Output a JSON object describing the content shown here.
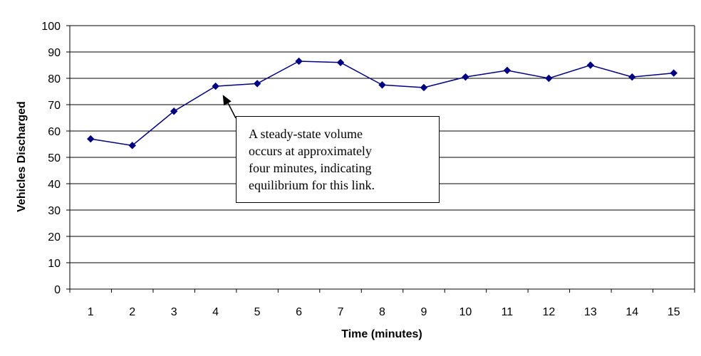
{
  "chart_data": {
    "type": "line",
    "x": [
      1,
      2,
      3,
      4,
      5,
      6,
      7,
      8,
      9,
      10,
      11,
      12,
      13,
      14,
      15
    ],
    "series": [
      {
        "values": [
          57,
          54.5,
          67.5,
          77,
          78,
          86.5,
          86,
          77.5,
          76.5,
          80.5,
          83,
          80,
          85,
          80.5,
          82
        ]
      }
    ],
    "xlabel": "Time (minutes)",
    "ylabel": "Vehicles Discharged",
    "ylim": [
      0,
      100
    ],
    "yticks": [
      0,
      10,
      20,
      30,
      40,
      50,
      60,
      70,
      80,
      90,
      100
    ],
    "grid": "horizontal",
    "line_color": "#000080",
    "annotation": {
      "lines": [
        "A steady-state volume",
        "occurs at approximately",
        "four minutes, indicating",
        "equilibrium for this link."
      ],
      "points_to_x": 4
    }
  }
}
